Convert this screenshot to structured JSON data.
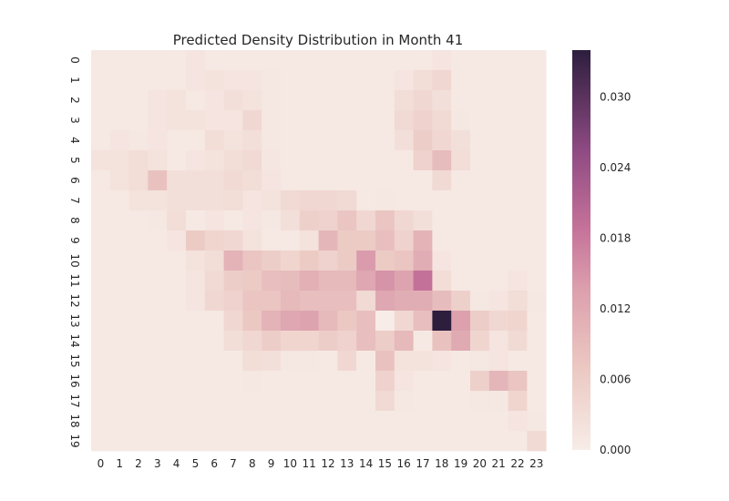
{
  "chart_data": {
    "type": "heatmap",
    "title": "Predicted Density Distribution in Month 41",
    "xlabel": "",
    "ylabel": "",
    "x_labels": [
      "0",
      "1",
      "2",
      "3",
      "4",
      "5",
      "6",
      "7",
      "8",
      "9",
      "10",
      "11",
      "12",
      "13",
      "14",
      "15",
      "16",
      "17",
      "18",
      "19",
      "20",
      "21",
      "22",
      "23"
    ],
    "y_labels": [
      "0",
      "1",
      "2",
      "3",
      "4",
      "5",
      "6",
      "7",
      "8",
      "9",
      "10",
      "11",
      "12",
      "13",
      "14",
      "15",
      "16",
      "17",
      "18",
      "19"
    ],
    "colorbar": {
      "min": 0.0,
      "max": 0.034,
      "ticks": [
        0.0,
        0.006,
        0.012,
        0.018,
        0.024,
        0.03
      ],
      "tick_labels": [
        "0.000",
        "0.006",
        "0.012",
        "0.018",
        "0.024",
        "0.030"
      ]
    },
    "color_low": "#f7ece7",
    "color_mid": "#c6739a",
    "color_high": "#2d1e3e",
    "values": [
      [
        0.0005,
        0.0005,
        0.0005,
        0.0005,
        0.0008,
        0.0015,
        0.0008,
        0.0005,
        0.0005,
        0.0005,
        0.0005,
        0.0005,
        0.0005,
        0.0005,
        0.0005,
        0.0005,
        0.0005,
        0.0008,
        0.0015,
        0.0005,
        0.0005,
        0.0005,
        0.0005,
        0.0005
      ],
      [
        0.0005,
        0.0005,
        0.0005,
        0.0005,
        0.0008,
        0.0015,
        0.002,
        0.0015,
        0.0015,
        0.001,
        0.0005,
        0.0005,
        0.0005,
        0.0005,
        0.0005,
        0.0005,
        0.0015,
        0.003,
        0.004,
        0.0005,
        0.0005,
        0.0005,
        0.0005,
        0.0005
      ],
      [
        0.0005,
        0.0005,
        0.0005,
        0.0015,
        0.002,
        0.0008,
        0.0015,
        0.0025,
        0.002,
        0.001,
        0.0005,
        0.0005,
        0.0005,
        0.0005,
        0.0005,
        0.0005,
        0.003,
        0.004,
        0.0025,
        0.0008,
        0.0005,
        0.0005,
        0.0005,
        0.0005
      ],
      [
        0.0005,
        0.0005,
        0.0005,
        0.0015,
        0.002,
        0.002,
        0.0015,
        0.0015,
        0.004,
        0.001,
        0.0005,
        0.0005,
        0.0005,
        0.0005,
        0.0005,
        0.0005,
        0.0035,
        0.005,
        0.0035,
        0.001,
        0.0005,
        0.0005,
        0.0005,
        0.0005
      ],
      [
        0.0005,
        0.0015,
        0.001,
        0.0015,
        0.0008,
        0.0008,
        0.003,
        0.002,
        0.0025,
        0.001,
        0.0005,
        0.0005,
        0.0005,
        0.0005,
        0.0005,
        0.0005,
        0.0025,
        0.006,
        0.004,
        0.0025,
        0.0005,
        0.0005,
        0.0005,
        0.0005
      ],
      [
        0.002,
        0.002,
        0.003,
        0.002,
        0.0008,
        0.0015,
        0.002,
        0.003,
        0.0035,
        0.0012,
        0.0005,
        0.0005,
        0.0005,
        0.0005,
        0.0005,
        0.0005,
        0.0005,
        0.005,
        0.009,
        0.003,
        0.0005,
        0.0005,
        0.0005,
        0.0005
      ],
      [
        0.0005,
        0.002,
        0.003,
        0.008,
        0.0025,
        0.0025,
        0.0025,
        0.0035,
        0.003,
        0.0015,
        0.0008,
        0.0005,
        0.0005,
        0.0005,
        0.0005,
        0.0005,
        0.0005,
        0.0005,
        0.0035,
        0.0005,
        0.0005,
        0.0005,
        0.0005,
        0.0005
      ],
      [
        0.0005,
        0.0008,
        0.002,
        0.002,
        0.0025,
        0.0025,
        0.0025,
        0.003,
        0.0015,
        0.002,
        0.0035,
        0.004,
        0.004,
        0.0035,
        0.0005,
        0.001,
        0.0005,
        0.0005,
        0.0005,
        0.0005,
        0.0005,
        0.0005,
        0.0005,
        0.0005
      ],
      [
        0.0005,
        0.0005,
        0.0008,
        0.001,
        0.003,
        0.0005,
        0.0015,
        0.0008,
        0.0015,
        0.001,
        0.0025,
        0.0055,
        0.005,
        0.0075,
        0.004,
        0.0075,
        0.004,
        0.0025,
        0.0005,
        0.0005,
        0.0005,
        0.0005,
        0.0005,
        0.0005
      ],
      [
        0.0005,
        0.0005,
        0.0005,
        0.0005,
        0.0015,
        0.0065,
        0.0045,
        0.004,
        0.002,
        0.0008,
        0.0008,
        0.002,
        0.01,
        0.0065,
        0.0065,
        0.0085,
        0.005,
        0.0105,
        0.0005,
        0.0005,
        0.0005,
        0.0005,
        0.0005,
        0.0005
      ],
      [
        0.0005,
        0.0005,
        0.0005,
        0.0005,
        0.0005,
        0.002,
        0.003,
        0.0105,
        0.0075,
        0.006,
        0.0045,
        0.0065,
        0.005,
        0.0065,
        0.014,
        0.0065,
        0.0075,
        0.0115,
        0.0015,
        0.0005,
        0.0005,
        0.0005,
        0.0005,
        0.0005
      ],
      [
        0.0005,
        0.0005,
        0.0005,
        0.0005,
        0.0005,
        0.0015,
        0.0035,
        0.006,
        0.0065,
        0.0085,
        0.009,
        0.011,
        0.0095,
        0.0095,
        0.0125,
        0.015,
        0.013,
        0.019,
        0.003,
        0.0005,
        0.0005,
        0.0005,
        0.0015,
        0.0005
      ],
      [
        0.0005,
        0.0005,
        0.0005,
        0.0005,
        0.0005,
        0.0015,
        0.004,
        0.005,
        0.0075,
        0.0075,
        0.0095,
        0.0085,
        0.0085,
        0.0085,
        0.0035,
        0.0125,
        0.0115,
        0.0115,
        0.009,
        0.0055,
        0.001,
        0.0015,
        0.003,
        0.001
      ],
      [
        0.0005,
        0.0005,
        0.0005,
        0.0005,
        0.0005,
        0.0005,
        0.0005,
        0.004,
        0.007,
        0.0105,
        0.0125,
        0.013,
        0.0095,
        0.007,
        0.0085,
        0.0,
        0.004,
        0.0085,
        0.034,
        0.0135,
        0.006,
        0.004,
        0.0045,
        0.0005
      ],
      [
        0.0005,
        0.0005,
        0.0005,
        0.0005,
        0.0005,
        0.0005,
        0.0005,
        0.003,
        0.004,
        0.006,
        0.0045,
        0.0045,
        0.006,
        0.005,
        0.0085,
        0.006,
        0.0095,
        0.0005,
        0.008,
        0.012,
        0.0045,
        0.0015,
        0.0035,
        0.0005
      ],
      [
        0.0005,
        0.0005,
        0.0005,
        0.0005,
        0.0005,
        0.0005,
        0.0005,
        0.0005,
        0.003,
        0.0025,
        0.001,
        0.001,
        0.0005,
        0.004,
        0.0005,
        0.008,
        0.002,
        0.002,
        0.0015,
        0.0005,
        0.001,
        0.0015,
        0.0005,
        0.0005
      ],
      [
        0.0005,
        0.0005,
        0.0005,
        0.0005,
        0.0005,
        0.0005,
        0.0005,
        0.0005,
        0.001,
        0.0005,
        0.0005,
        0.0005,
        0.0008,
        0.0005,
        0.0005,
        0.005,
        0.0015,
        0.0005,
        0.0005,
        0.0005,
        0.0055,
        0.01,
        0.0075,
        0.0005
      ],
      [
        0.0005,
        0.0005,
        0.0005,
        0.0005,
        0.0005,
        0.0005,
        0.0005,
        0.0005,
        0.0005,
        0.0005,
        0.0005,
        0.0005,
        0.0005,
        0.0005,
        0.0005,
        0.0035,
        0.001,
        0.0005,
        0.0005,
        0.0005,
        0.001,
        0.001,
        0.0045,
        0.0005
      ],
      [
        0.0005,
        0.0005,
        0.0005,
        0.0005,
        0.0005,
        0.0005,
        0.0005,
        0.0005,
        0.0005,
        0.0005,
        0.0005,
        0.0005,
        0.0005,
        0.0005,
        0.0005,
        0.0005,
        0.0005,
        0.0005,
        0.0005,
        0.0005,
        0.0005,
        0.0005,
        0.0015,
        0.001
      ],
      [
        0.0005,
        0.0005,
        0.0005,
        0.0005,
        0.0005,
        0.0005,
        0.0005,
        0.0005,
        0.0005,
        0.0005,
        0.0005,
        0.0005,
        0.0005,
        0.0005,
        0.0005,
        0.0005,
        0.0005,
        0.0005,
        0.0005,
        0.0005,
        0.0005,
        0.0005,
        0.0005,
        0.0035
      ]
    ]
  }
}
